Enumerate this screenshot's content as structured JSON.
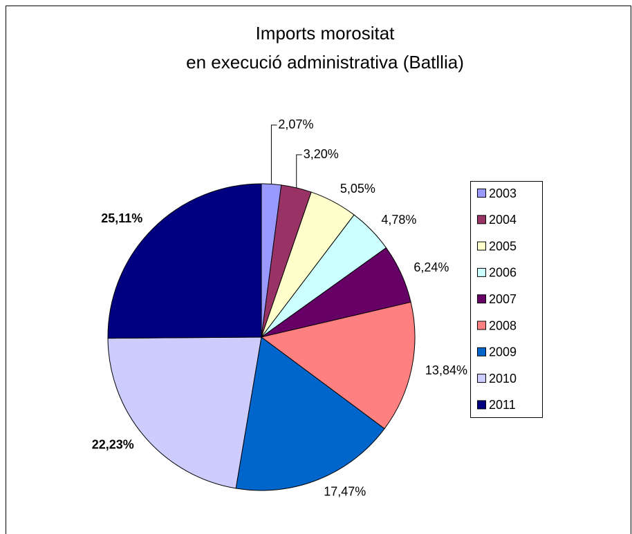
{
  "chart_data": {
    "type": "pie",
    "title": [
      "Imports morositat",
      "en execució administrativa (Batllia)"
    ],
    "categories": [
      "2003",
      "2004",
      "2005",
      "2006",
      "2007",
      "2008",
      "2009",
      "2010",
      "2011"
    ],
    "values": [
      2.07,
      3.2,
      5.05,
      4.78,
      6.24,
      13.84,
      17.47,
      22.23,
      25.11
    ],
    "value_labels": [
      "2,07%",
      "3,20%",
      "5,05%",
      "4,78%",
      "6,24%",
      "13,84%",
      "17,47%",
      "22,23%",
      "25,11%"
    ],
    "value_label_bold": [
      false,
      false,
      false,
      false,
      false,
      false,
      false,
      true,
      true
    ],
    "colors": [
      "#9999ff",
      "#993366",
      "#ffffcc",
      "#ccffff",
      "#660066",
      "#ff8080",
      "#0066cc",
      "#ccccff",
      "#000080"
    ],
    "legend": "right"
  }
}
